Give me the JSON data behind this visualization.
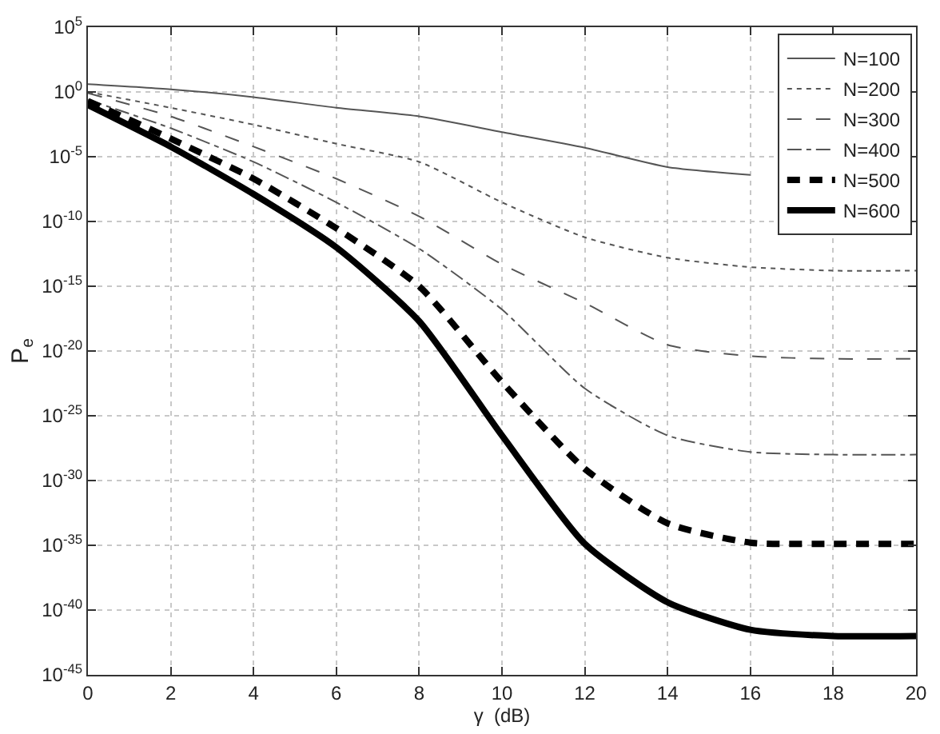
{
  "chart_data": {
    "type": "line",
    "xlabel": "γ  (dB)",
    "ylabel": "P$_{e}$",
    "log": "y",
    "grid": true,
    "legend": "top right",
    "marker": "none",
    "x": [
      0,
      2,
      4,
      6,
      8,
      10,
      12,
      14,
      16,
      18,
      20
    ],
    "xlim": [
      0,
      20
    ],
    "xticks": [
      0,
      2,
      4,
      6,
      8,
      10,
      12,
      14,
      16,
      18,
      20
    ],
    "ylim": [
      1e-45,
      100000.0
    ],
    "yticks": [
      {
        "value": 100000.0,
        "label": "10$^{5}$"
      },
      {
        "value": 1,
        "label": "10$^{0}$"
      },
      {
        "value": 1e-05,
        "label": "10$^{-5}$"
      },
      {
        "value": 1e-10,
        "label": "10$^{-10}$"
      },
      {
        "value": 1e-15,
        "label": "10$^{-15}$"
      },
      {
        "value": 1e-20,
        "label": "10$^{-20}$"
      },
      {
        "value": 1e-25,
        "label": "10$^{-25}$"
      },
      {
        "value": 1e-30,
        "label": "10$^{-30}$"
      },
      {
        "value": 1e-35,
        "label": "10$^{-35}$"
      },
      {
        "value": 1e-40,
        "label": "10$^{-40}$"
      },
      {
        "value": 1e-45,
        "label": "10$^{-45}$"
      }
    ],
    "series": [
      {
        "name": "N=100",
        "color": "#555555",
        "line_style": "solid",
        "values": [
          4,
          1.6,
          0.4,
          0.06,
          0.013,
          0.0008,
          5e-05,
          1.6e-06,
          4e-07,
          null,
          null
        ]
      },
      {
        "name": "N=200",
        "color": "#555555",
        "line_style": "dotted",
        "values": [
          1,
          0.06,
          0.003,
          0.0001,
          4e-06,
          3e-09,
          6e-12,
          1.6e-13,
          3e-14,
          1.6e-14,
          1.6e-14
        ]
      },
      {
        "name": "N=300",
        "color": "#555555",
        "line_style": "dashed",
        "values": [
          0.8,
          0.013,
          6e-05,
          2e-07,
          2.5e-10,
          5e-14,
          5e-17,
          3e-20,
          4e-21,
          2.5e-21,
          2.5e-21
        ]
      },
      {
        "name": "N=400",
        "color": "#555555",
        "line_style": "dashdot",
        "values": [
          0.25,
          0.0016,
          4e-06,
          3e-09,
          8e-13,
          1.6e-17,
          1.3e-23,
          3e-27,
          1.6e-28,
          1e-28,
          1e-28
        ]
      },
      {
        "name": "N=500",
        "color": "#000000",
        "line_style": "dashed",
        "values": [
          0.2,
          0.00025,
          2e-07,
          3e-11,
          1e-15,
          4e-23,
          8e-30,
          5e-34,
          1.6e-35,
          1.3e-35,
          1.3e-35
        ]
      },
      {
        "name": "N=600",
        "color": "#000000",
        "line_style": "solid",
        "values": [
          0.1,
          6e-05,
          1.3e-08,
          1e-12,
          2e-18,
          3e-27,
          1.3e-35,
          4e-40,
          3e-42,
          1e-42,
          1e-42
        ]
      }
    ]
  }
}
